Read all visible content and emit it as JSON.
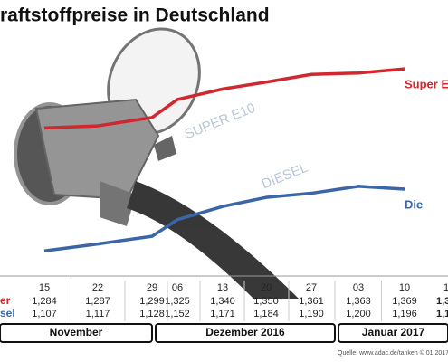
{
  "chart_data": {
    "type": "line",
    "title": "raftstoffpreise in Deutschland",
    "categories": [
      "15",
      "22",
      "29",
      "06",
      "13",
      "20",
      "27",
      "03",
      "10"
    ],
    "series": [
      {
        "name": "er",
        "line_label": "Super E",
        "color": "#d0282e",
        "values": [
          1.284,
          1.287,
          1.299,
          1.325,
          1.34,
          1.35,
          1.361,
          1.363,
          1.369
        ],
        "value_labels": [
          "1,284",
          "1,287",
          "1,299",
          "1,325",
          "1,340",
          "1,350",
          "1,361",
          "1,363",
          "1,369"
        ]
      },
      {
        "name": "sel",
        "line_label": "Die",
        "color": "#3a66a8",
        "values": [
          1.107,
          1.117,
          1.128,
          1.152,
          1.171,
          1.184,
          1.19,
          1.2,
          1.196
        ],
        "value_labels": [
          "1,107",
          "1,117",
          "1,128",
          "1,152",
          "1,171",
          "1,184",
          "1,190",
          "1,200",
          "1,196"
        ]
      }
    ],
    "edge_column": {
      "category": "1",
      "labels": [
        "1,3",
        "1,1"
      ]
    },
    "ylim": [
      1.08,
      1.39
    ],
    "months": [
      "November",
      "Dezember 2016",
      "Januar 2017"
    ],
    "decor_labels": [
      "SUPER E10",
      "DIESEL"
    ],
    "source": "Quelle: www.adac.de/tanken  © 01.2017"
  }
}
